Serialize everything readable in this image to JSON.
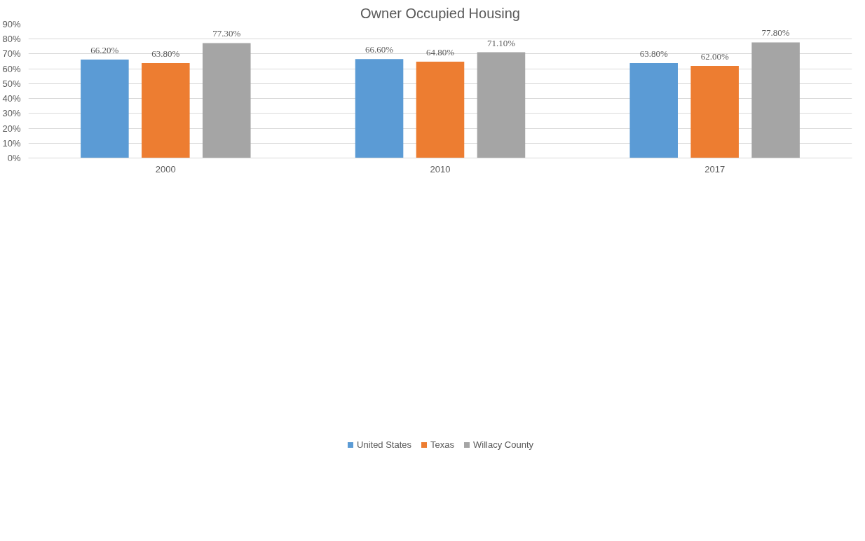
{
  "chart_data": {
    "type": "bar",
    "title": "Owner Occupied Housing",
    "categories": [
      "2000",
      "2010",
      "2017"
    ],
    "series": [
      {
        "name": "United States",
        "color": "#5b9bd5",
        "values": [
          66.2,
          66.6,
          63.8
        ],
        "value_labels": [
          "66.20%",
          "66.60%",
          "63.80%"
        ]
      },
      {
        "name": "Texas",
        "color": "#ed7d31",
        "values": [
          63.8,
          64.8,
          62.0
        ],
        "value_labels": [
          "63.80%",
          "64.80%",
          "62.00%"
        ]
      },
      {
        "name": "Willacy County",
        "color": "#a5a5a5",
        "values": [
          77.3,
          71.1,
          77.8
        ],
        "value_labels": [
          "77.30%",
          "71.10%",
          "77.80%"
        ]
      }
    ],
    "ylim": [
      0,
      90
    ],
    "yticks": [
      {
        "value": 0,
        "label": "0%"
      },
      {
        "value": 10,
        "label": "10%"
      },
      {
        "value": 20,
        "label": "20%"
      },
      {
        "value": 30,
        "label": "30%"
      },
      {
        "value": 40,
        "label": "40%"
      },
      {
        "value": 50,
        "label": "50%"
      },
      {
        "value": 60,
        "label": "60%"
      },
      {
        "value": 70,
        "label": "70%"
      },
      {
        "value": 80,
        "label": "80%"
      },
      {
        "value": 90,
        "label": "90%"
      }
    ],
    "grid": "y",
    "legend": "bottom"
  }
}
